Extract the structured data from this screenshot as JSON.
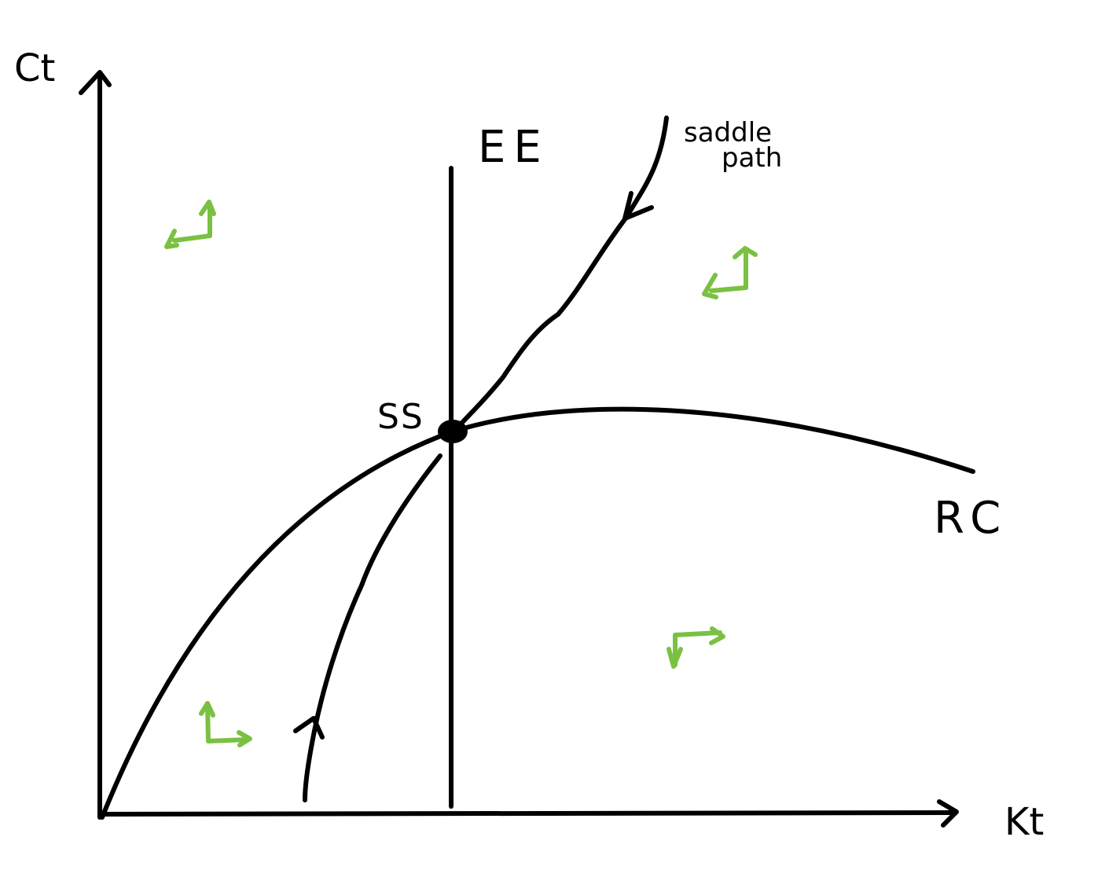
{
  "labels": {
    "y_axis": "Ct",
    "x_axis": "Kt",
    "ee_curve": "EE",
    "rc_curve": "RC",
    "steady_state": "SS",
    "saddle_path_line1": "saddle",
    "saddle_path_line2": "path"
  },
  "colors": {
    "ink": "#000000",
    "arrows": "#7ac143",
    "background": "#ffffff"
  },
  "phase_arrows": [
    {
      "region": "upper-left",
      "horizontal": "left",
      "vertical": "up"
    },
    {
      "region": "upper-right",
      "horizontal": "left",
      "vertical": "up"
    },
    {
      "region": "lower-left",
      "horizontal": "right",
      "vertical": "up"
    },
    {
      "region": "lower-right",
      "horizontal": "right",
      "vertical": "down"
    }
  ]
}
